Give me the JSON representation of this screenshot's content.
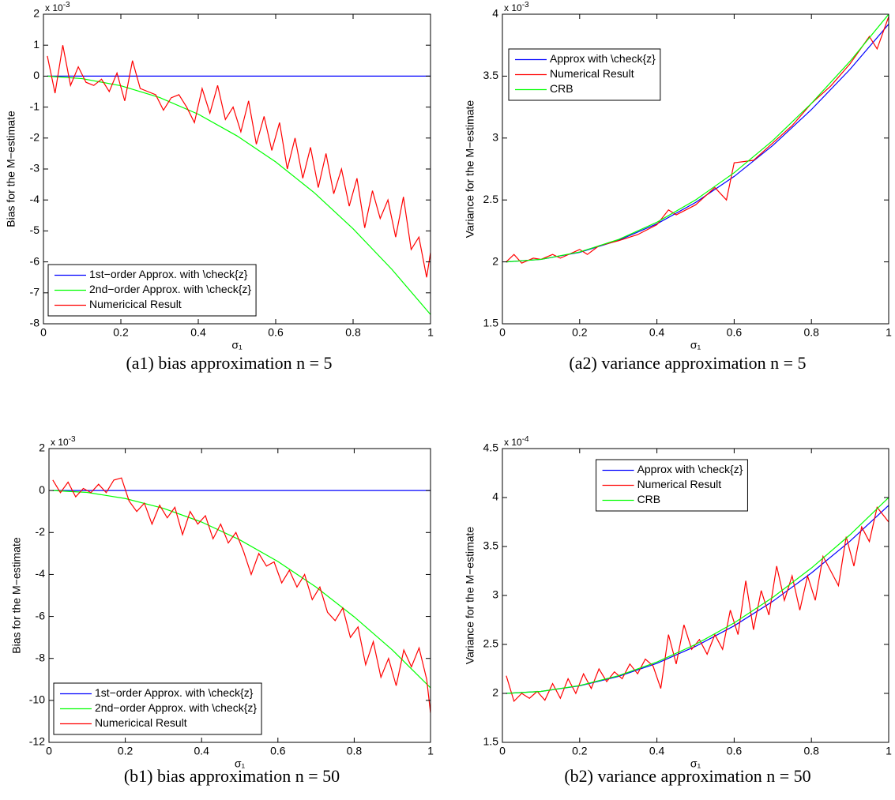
{
  "chart_data": [
    {
      "type": "line",
      "caption": "(a1) bias approximation n = 5",
      "ylabel": "Bias for the M−estimate",
      "xlabel": "σ₁",
      "y_scale_label": "x 10",
      "y_scale_exponent": "-3",
      "xlim": [
        0,
        1
      ],
      "xticks": [
        0,
        0.2,
        0.4,
        0.6,
        0.8,
        1
      ],
      "ylim": [
        -8,
        2
      ],
      "yticks": [
        -8,
        -7,
        -6,
        -5,
        -4,
        -3,
        -2,
        -1,
        0,
        1,
        2
      ],
      "legend": "lower left",
      "series": [
        {
          "name": "1st−order Approx. with \\check{z}",
          "color": "#0000ff",
          "x": [
            0.01,
            1
          ],
          "values": [
            0,
            0
          ]
        },
        {
          "name": "2nd−order Approx. with \\check{z}",
          "color": "#00ff00",
          "x": [
            0.01,
            0.1,
            0.2,
            0.3,
            0.4,
            0.5,
            0.6,
            0.7,
            0.8,
            0.9,
            1
          ],
          "values": [
            0,
            -0.08,
            -0.31,
            -0.69,
            -1.23,
            -1.93,
            -2.77,
            -3.77,
            -4.93,
            -6.24,
            -7.7
          ]
        },
        {
          "name": "Numericical Result",
          "color": "#ff0000",
          "x": [
            0.01,
            0.03,
            0.05,
            0.07,
            0.09,
            0.11,
            0.13,
            0.15,
            0.17,
            0.19,
            0.21,
            0.23,
            0.25,
            0.27,
            0.29,
            0.31,
            0.33,
            0.35,
            0.37,
            0.39,
            0.41,
            0.43,
            0.45,
            0.47,
            0.49,
            0.51,
            0.53,
            0.55,
            0.57,
            0.59,
            0.61,
            0.63,
            0.65,
            0.67,
            0.69,
            0.71,
            0.73,
            0.75,
            0.77,
            0.79,
            0.81,
            0.83,
            0.85,
            0.87,
            0.89,
            0.91,
            0.93,
            0.95,
            0.97,
            0.99,
            1
          ],
          "values": [
            0.65,
            -0.55,
            1.0,
            -0.3,
            0.3,
            -0.2,
            -0.3,
            -0.1,
            -0.5,
            0.1,
            -0.8,
            0.5,
            -0.4,
            -0.5,
            -0.6,
            -1.1,
            -0.7,
            -0.6,
            -1.0,
            -1.5,
            -0.4,
            -1.2,
            -0.3,
            -1.4,
            -1.0,
            -1.8,
            -0.8,
            -2.2,
            -1.3,
            -2.4,
            -1.5,
            -3.0,
            -2.0,
            -3.3,
            -2.3,
            -3.6,
            -2.5,
            -3.8,
            -3.0,
            -4.2,
            -3.3,
            -4.9,
            -3.7,
            -4.6,
            -4.0,
            -5.2,
            -3.9,
            -5.6,
            -5.2,
            -6.5,
            -5.7
          ]
        }
      ]
    },
    {
      "type": "line",
      "caption": "(a2) variance approximation n = 5",
      "ylabel": "Variance for the M−estimate",
      "xlabel": "σ₁",
      "y_scale_label": "x 10",
      "y_scale_exponent": "-3",
      "xlim": [
        0,
        1
      ],
      "xticks": [
        0,
        0.2,
        0.4,
        0.6,
        0.8,
        1
      ],
      "ylim": [
        1.5,
        4
      ],
      "yticks": [
        1.5,
        2,
        2.5,
        3,
        3.5,
        4
      ],
      "legend": "upper left",
      "series": [
        {
          "name": "Approx with \\check{z}",
          "color": "#0000ff",
          "x": [
            0.01,
            0.1,
            0.2,
            0.3,
            0.4,
            0.5,
            0.6,
            0.7,
            0.8,
            0.9,
            1
          ],
          "values": [
            2.0,
            2.02,
            2.077,
            2.173,
            2.307,
            2.48,
            2.69,
            2.94,
            3.23,
            3.555,
            3.92
          ]
        },
        {
          "name": "Numerical Result",
          "color": "#ff0000",
          "x": [
            0.01,
            0.03,
            0.05,
            0.08,
            0.1,
            0.13,
            0.15,
            0.2,
            0.22,
            0.25,
            0.3,
            0.35,
            0.4,
            0.43,
            0.45,
            0.5,
            0.55,
            0.58,
            0.6,
            0.65,
            0.7,
            0.75,
            0.8,
            0.85,
            0.9,
            0.95,
            0.97,
            1
          ],
          "values": [
            2.0,
            2.06,
            1.99,
            2.03,
            2.02,
            2.06,
            2.03,
            2.1,
            2.06,
            2.13,
            2.17,
            2.22,
            2.3,
            2.42,
            2.38,
            2.46,
            2.6,
            2.5,
            2.8,
            2.82,
            2.96,
            3.1,
            3.28,
            3.42,
            3.6,
            3.82,
            3.72,
            3.98
          ]
        },
        {
          "name": "CRB",
          "color": "#00ff00",
          "x": [
            0.01,
            0.1,
            0.2,
            0.3,
            0.4,
            0.5,
            0.6,
            0.7,
            0.8,
            0.9,
            1
          ],
          "values": [
            2.0,
            2.02,
            2.08,
            2.18,
            2.32,
            2.5,
            2.72,
            2.98,
            3.28,
            3.62,
            4.0
          ]
        }
      ]
    },
    {
      "type": "line",
      "caption": "(b1) bias approximation n = 50",
      "ylabel": "Bias for the M−estimate",
      "xlabel": "σ₁",
      "y_scale_label": "x 10",
      "y_scale_exponent": "-3",
      "xlim": [
        0,
        1
      ],
      "xticks": [
        0,
        0.2,
        0.4,
        0.6,
        0.8,
        1
      ],
      "ylim": [
        -12,
        2
      ],
      "yticks": [
        -12,
        -10,
        -8,
        -6,
        -4,
        -2,
        0,
        2
      ],
      "legend": "lower left",
      "series": [
        {
          "name": "1st−order Approx. with \\check{z}",
          "color": "#0000ff",
          "x": [
            0.01,
            1
          ],
          "values": [
            0,
            0
          ]
        },
        {
          "name": "2nd−order Approx. with \\check{z}",
          "color": "#00ff00",
          "x": [
            0.01,
            0.1,
            0.2,
            0.3,
            0.4,
            0.5,
            0.6,
            0.7,
            0.8,
            0.9,
            1
          ],
          "values": [
            0,
            -0.09,
            -0.38,
            -0.85,
            -1.5,
            -2.35,
            -3.38,
            -4.6,
            -6.02,
            -7.6,
            -9.4
          ]
        },
        {
          "name": "Numericical Result",
          "color": "#ff0000",
          "x": [
            0.01,
            0.03,
            0.05,
            0.07,
            0.09,
            0.11,
            0.13,
            0.15,
            0.17,
            0.19,
            0.21,
            0.23,
            0.25,
            0.27,
            0.29,
            0.31,
            0.33,
            0.35,
            0.37,
            0.39,
            0.41,
            0.43,
            0.45,
            0.47,
            0.49,
            0.51,
            0.53,
            0.55,
            0.57,
            0.59,
            0.61,
            0.63,
            0.65,
            0.67,
            0.69,
            0.71,
            0.73,
            0.75,
            0.77,
            0.79,
            0.81,
            0.83,
            0.85,
            0.87,
            0.89,
            0.91,
            0.93,
            0.95,
            0.97,
            0.99,
            1
          ],
          "values": [
            0.5,
            -0.1,
            0.4,
            -0.3,
            0.1,
            -0.1,
            0.3,
            -0.1,
            0.5,
            0.6,
            -0.5,
            -1.0,
            -0.6,
            -1.6,
            -0.7,
            -1.3,
            -0.8,
            -2.1,
            -1.0,
            -1.6,
            -1.2,
            -2.3,
            -1.6,
            -2.5,
            -2.0,
            -2.9,
            -4.0,
            -3.0,
            -3.6,
            -3.4,
            -4.4,
            -3.8,
            -4.6,
            -4.0,
            -5.2,
            -4.6,
            -5.8,
            -6.2,
            -5.6,
            -7.0,
            -6.5,
            -8.3,
            -7.2,
            -8.9,
            -8.0,
            -9.3,
            -7.6,
            -8.4,
            -7.5,
            -9.0,
            -10.6
          ]
        }
      ]
    },
    {
      "type": "line",
      "caption": "(b2) variance approximation n = 50",
      "ylabel": "Variance for the M−estimate",
      "xlabel": "σ₁",
      "y_scale_label": "x 10",
      "y_scale_exponent": "-4",
      "xlim": [
        0,
        1
      ],
      "xticks": [
        0,
        0.2,
        0.4,
        0.6,
        0.8,
        1
      ],
      "ylim": [
        1.5,
        4.5
      ],
      "yticks": [
        1.5,
        2,
        2.5,
        3,
        3.5,
        4,
        4.5
      ],
      "legend": "upper center",
      "series": [
        {
          "name": "Approx with \\check{z}",
          "color": "#0000ff",
          "x": [
            0.01,
            0.1,
            0.2,
            0.3,
            0.4,
            0.5,
            0.6,
            0.7,
            0.8,
            0.9,
            1
          ],
          "values": [
            2.0,
            2.02,
            2.077,
            2.173,
            2.307,
            2.48,
            2.69,
            2.94,
            3.23,
            3.555,
            3.92
          ]
        },
        {
          "name": "Numerical Result",
          "color": "#ff0000",
          "x": [
            0.01,
            0.03,
            0.05,
            0.07,
            0.09,
            0.11,
            0.13,
            0.15,
            0.17,
            0.19,
            0.21,
            0.23,
            0.25,
            0.27,
            0.29,
            0.31,
            0.33,
            0.35,
            0.37,
            0.39,
            0.41,
            0.43,
            0.45,
            0.47,
            0.49,
            0.51,
            0.53,
            0.55,
            0.57,
            0.59,
            0.61,
            0.63,
            0.65,
            0.67,
            0.69,
            0.71,
            0.73,
            0.75,
            0.77,
            0.79,
            0.81,
            0.83,
            0.85,
            0.87,
            0.89,
            0.91,
            0.93,
            0.95,
            0.97,
            0.99,
            1
          ],
          "values": [
            2.18,
            1.92,
            2.0,
            1.95,
            2.02,
            1.93,
            2.1,
            1.95,
            2.15,
            2.0,
            2.2,
            2.05,
            2.25,
            2.12,
            2.22,
            2.15,
            2.3,
            2.2,
            2.35,
            2.28,
            2.05,
            2.6,
            2.3,
            2.7,
            2.45,
            2.55,
            2.4,
            2.6,
            2.45,
            2.85,
            2.6,
            3.15,
            2.65,
            3.05,
            2.8,
            3.3,
            2.95,
            3.2,
            2.85,
            3.2,
            2.95,
            3.4,
            3.25,
            3.1,
            3.6,
            3.3,
            3.7,
            3.55,
            3.9,
            3.8,
            3.75
          ]
        },
        {
          "name": "CRB",
          "color": "#00ff00",
          "x": [
            0.01,
            0.1,
            0.2,
            0.3,
            0.4,
            0.5,
            0.6,
            0.7,
            0.8,
            0.9,
            1
          ],
          "values": [
            2.0,
            2.02,
            2.08,
            2.18,
            2.32,
            2.5,
            2.72,
            2.98,
            3.28,
            3.62,
            4.0
          ]
        }
      ]
    }
  ]
}
